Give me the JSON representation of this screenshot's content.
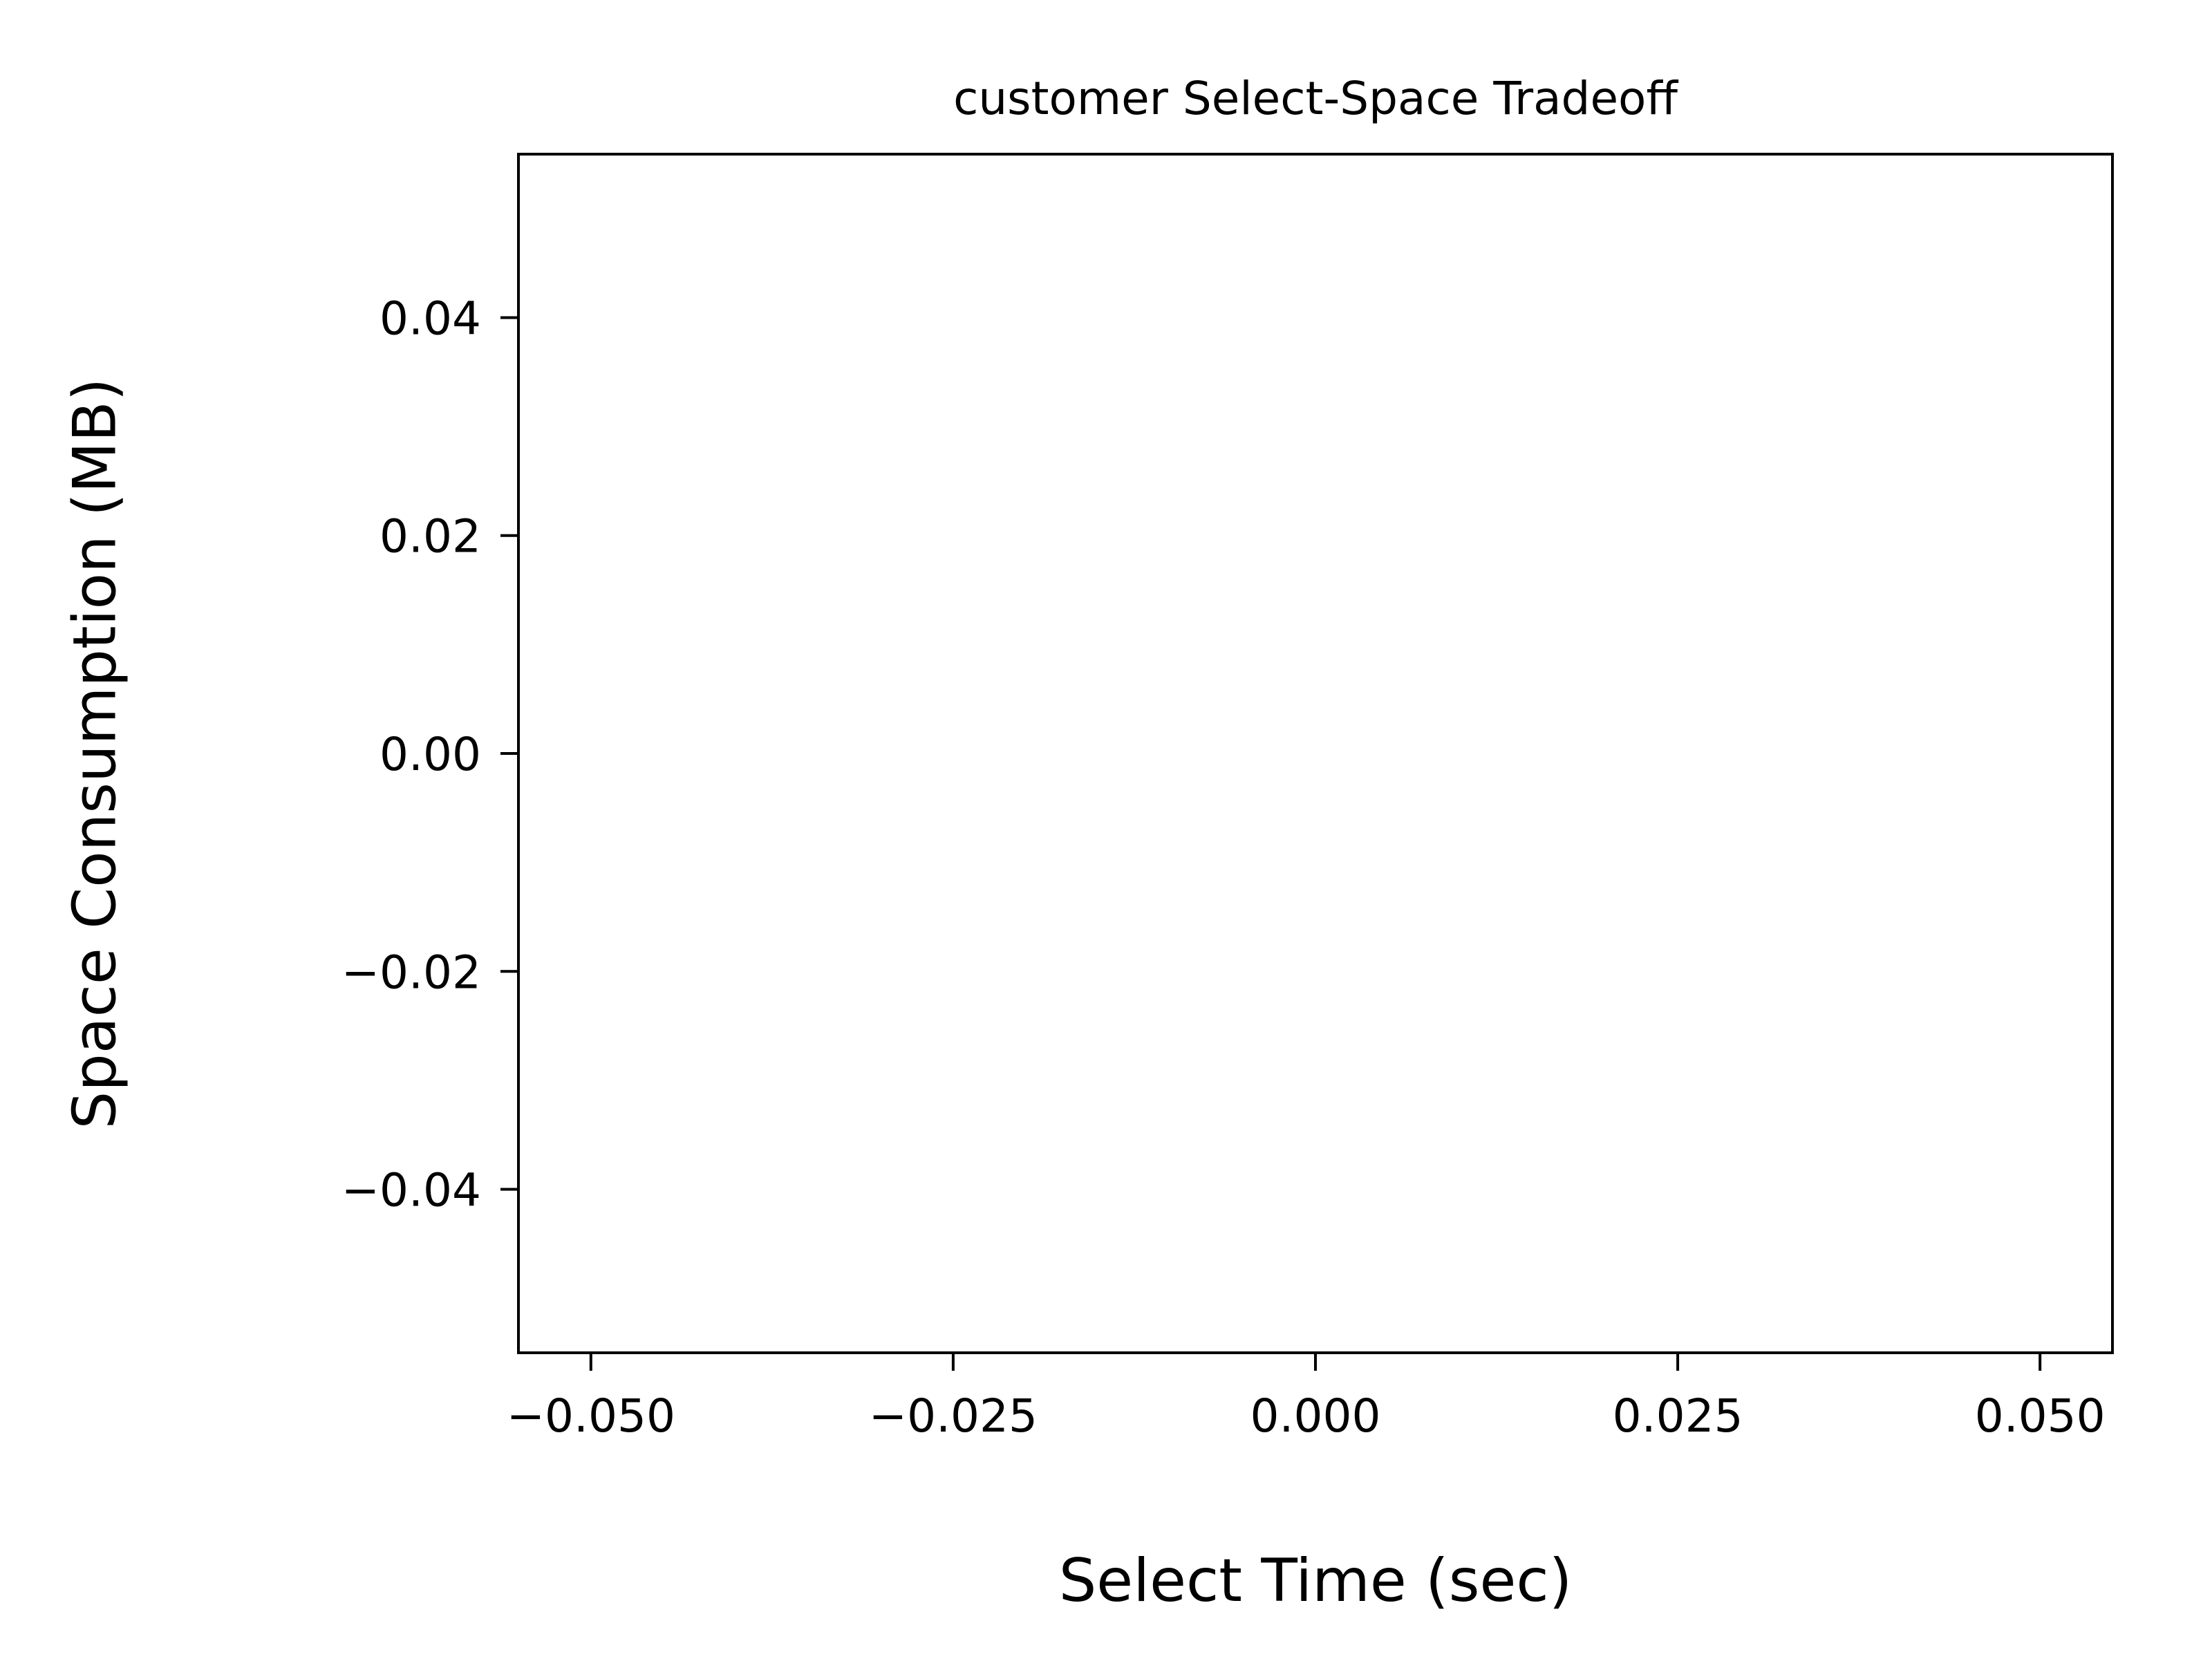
{
  "chart_data": {
    "type": "scatter",
    "title": "customer Select-Space Tradeoff",
    "xlabel": "Select Time (sec)",
    "ylabel": "Space Consumption (MB)",
    "xlim": [
      -0.055,
      0.055
    ],
    "ylim": [
      -0.055,
      0.055
    ],
    "x_ticks": [
      -0.05,
      -0.025,
      0.0,
      0.025,
      0.05
    ],
    "x_tick_labels": [
      "−0.050",
      "−0.025",
      "0.000",
      "0.025",
      "0.050"
    ],
    "y_ticks": [
      -0.04,
      -0.02,
      0.0,
      0.02,
      0.04
    ],
    "y_tick_labels": [
      "−0.04",
      "−0.02",
      "0.00",
      "0.02",
      "0.04"
    ],
    "grid": false,
    "series": []
  }
}
